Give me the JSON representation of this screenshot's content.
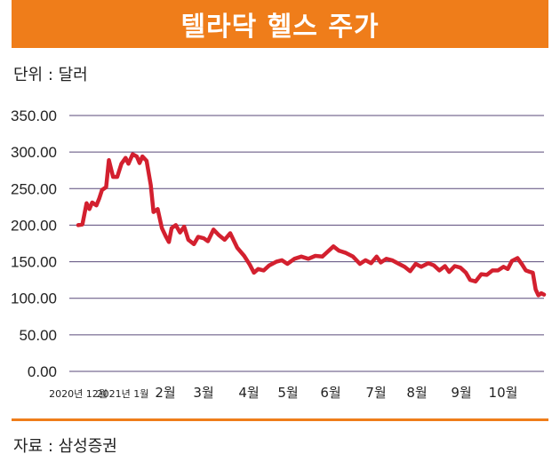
{
  "header": {
    "title": "텔라닥 헬스 주가"
  },
  "unit_label": "단위 : 달러",
  "source_label": "자료 : 삼성증권",
  "colors": {
    "accent": "#ef7d1a",
    "line": "#d3202f",
    "grid": "#5a4a7a"
  },
  "chart_data": {
    "type": "line",
    "title": "텔라닥 헬스 주가",
    "ylabel": "",
    "xlabel": "",
    "ylim": [
      0,
      350
    ],
    "yticks": [
      "0.00",
      "50.00",
      "100.00",
      "150.00",
      "200.00",
      "250.00",
      "300.00",
      "350.00"
    ],
    "xticks": [
      "2020년 12월",
      "2021년 1월",
      "2월",
      "3월",
      "4월",
      "5월",
      "6월",
      "7월",
      "8월",
      "9월",
      "10월"
    ],
    "x_start": "2020-12-01",
    "x_end": "2021-10-31",
    "grid": true,
    "series": [
      {
        "name": "",
        "points": [
          [
            "2020-12-01",
            200
          ],
          [
            "2020-12-04",
            201
          ],
          [
            "2020-12-07",
            230
          ],
          [
            "2020-12-09",
            222
          ],
          [
            "2020-12-11",
            231
          ],
          [
            "2020-12-14",
            227
          ],
          [
            "2020-12-16",
            236
          ],
          [
            "2020-12-18",
            248
          ],
          [
            "2020-12-21",
            252
          ],
          [
            "2020-12-23",
            289
          ],
          [
            "2020-12-26",
            266
          ],
          [
            "2020-12-29",
            266
          ],
          [
            "2021-01-01",
            284
          ],
          [
            "2021-01-04",
            292
          ],
          [
            "2021-01-06",
            284
          ],
          [
            "2021-01-09",
            297
          ],
          [
            "2021-01-12",
            294
          ],
          [
            "2021-01-14",
            285
          ],
          [
            "2021-01-16",
            294
          ],
          [
            "2021-01-19",
            288
          ],
          [
            "2021-01-22",
            255
          ],
          [
            "2021-01-24",
            218
          ],
          [
            "2021-01-27",
            222
          ],
          [
            "2021-01-30",
            196
          ],
          [
            "2021-02-02",
            184
          ],
          [
            "2021-02-04",
            177
          ],
          [
            "2021-02-06",
            196
          ],
          [
            "2021-02-09",
            200
          ],
          [
            "2021-02-12",
            190
          ],
          [
            "2021-02-15",
            198
          ],
          [
            "2021-02-18",
            180
          ],
          [
            "2021-02-22",
            174
          ],
          [
            "2021-02-25",
            184
          ],
          [
            "2021-03-01",
            182
          ],
          [
            "2021-03-04",
            178
          ],
          [
            "2021-03-08",
            194
          ],
          [
            "2021-03-12",
            186
          ],
          [
            "2021-03-16",
            180
          ],
          [
            "2021-03-20",
            189
          ],
          [
            "2021-03-25",
            169
          ],
          [
            "2021-03-30",
            158
          ],
          [
            "2021-04-03",
            146
          ],
          [
            "2021-04-06",
            135
          ],
          [
            "2021-04-09",
            140
          ],
          [
            "2021-04-13",
            138
          ],
          [
            "2021-04-17",
            145
          ],
          [
            "2021-04-22",
            150
          ],
          [
            "2021-04-26",
            152
          ],
          [
            "2021-04-30",
            147
          ],
          [
            "2021-05-05",
            154
          ],
          [
            "2021-05-10",
            157
          ],
          [
            "2021-05-15",
            154
          ],
          [
            "2021-05-20",
            158
          ],
          [
            "2021-05-25",
            157
          ],
          [
            "2021-05-29",
            164
          ],
          [
            "2021-06-02",
            171
          ],
          [
            "2021-06-06",
            165
          ],
          [
            "2021-06-11",
            162
          ],
          [
            "2021-06-16",
            157
          ],
          [
            "2021-06-21",
            147
          ],
          [
            "2021-06-25",
            152
          ],
          [
            "2021-06-29",
            148
          ],
          [
            "2021-07-03",
            157
          ],
          [
            "2021-07-06",
            149
          ],
          [
            "2021-07-10",
            154
          ],
          [
            "2021-07-14",
            152
          ],
          [
            "2021-07-19",
            147
          ],
          [
            "2021-07-23",
            143
          ],
          [
            "2021-07-27",
            137
          ],
          [
            "2021-07-31",
            147
          ],
          [
            "2021-08-04",
            143
          ],
          [
            "2021-08-09",
            148
          ],
          [
            "2021-08-13",
            145
          ],
          [
            "2021-08-17",
            138
          ],
          [
            "2021-08-21",
            144
          ],
          [
            "2021-08-24",
            136
          ],
          [
            "2021-08-28",
            144
          ],
          [
            "2021-09-01",
            142
          ],
          [
            "2021-09-05",
            135
          ],
          [
            "2021-09-08",
            125
          ],
          [
            "2021-09-12",
            123
          ],
          [
            "2021-09-16",
            133
          ],
          [
            "2021-09-20",
            132
          ],
          [
            "2021-09-24",
            138
          ],
          [
            "2021-09-28",
            138
          ],
          [
            "2021-10-02",
            143
          ],
          [
            "2021-10-05",
            140
          ],
          [
            "2021-10-08",
            151
          ],
          [
            "2021-10-12",
            155
          ],
          [
            "2021-10-15",
            147
          ],
          [
            "2021-10-18",
            138
          ],
          [
            "2021-10-21",
            136
          ],
          [
            "2021-10-23",
            135
          ],
          [
            "2021-10-25",
            112
          ],
          [
            "2021-10-27",
            104
          ],
          [
            "2021-10-29",
            107
          ],
          [
            "2021-10-31",
            105
          ]
        ]
      }
    ]
  }
}
